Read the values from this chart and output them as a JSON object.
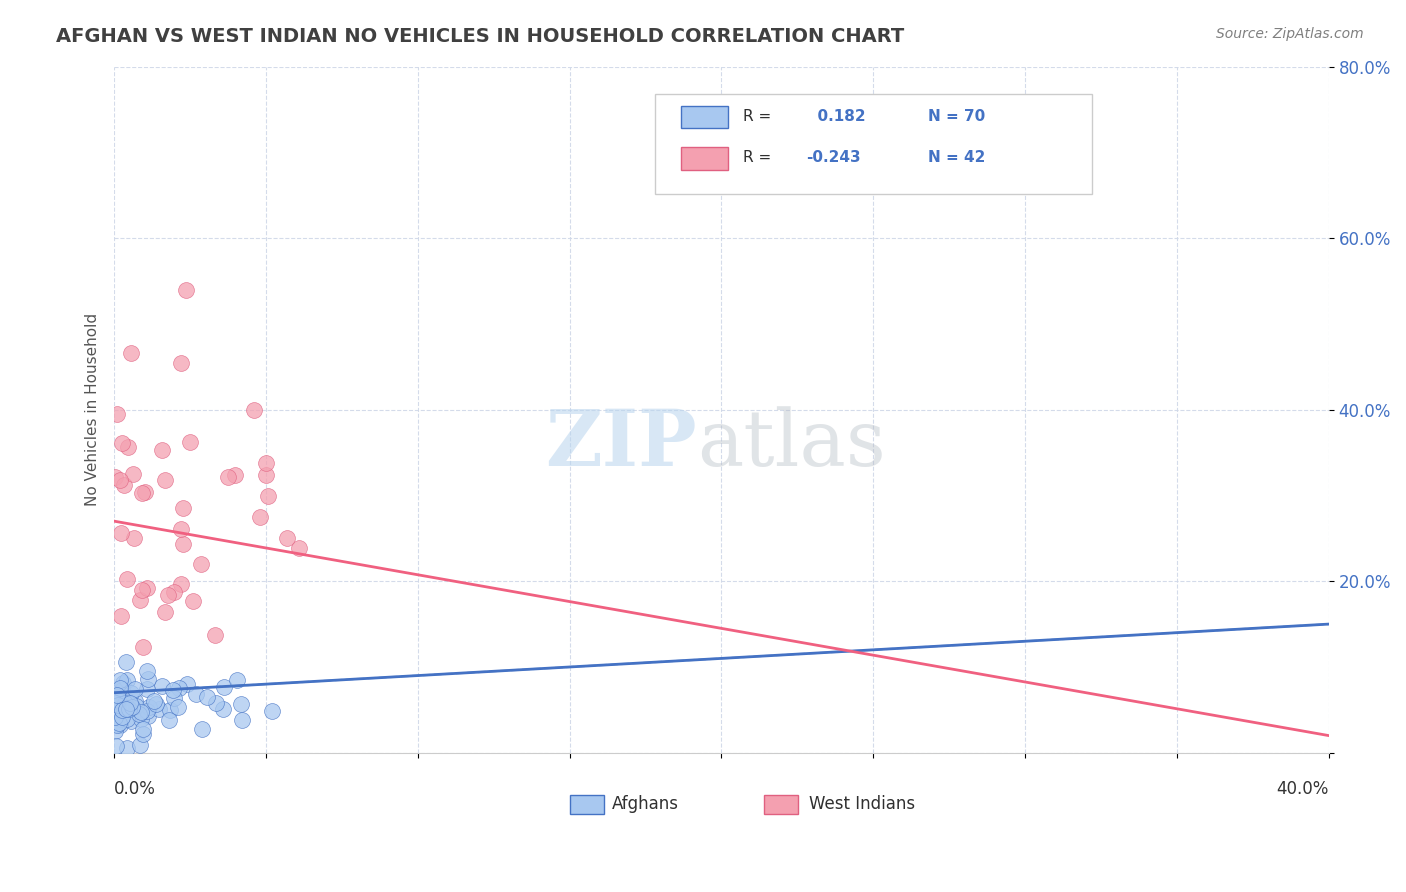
{
  "title": "AFGHAN VS WEST INDIAN NO VEHICLES IN HOUSEHOLD CORRELATION CHART",
  "source": "Source: ZipAtlas.com",
  "xlim": [
    0.0,
    0.4
  ],
  "ylim": [
    0.0,
    0.8
  ],
  "afghan_R": 0.182,
  "afghan_N": 70,
  "westindian_R": -0.243,
  "westindian_N": 42,
  "afghan_color": "#a8c8f0",
  "westindian_color": "#f4a0b0",
  "afghan_line_color": "#4472c4",
  "westindian_line_color": "#f06080",
  "background_color": "#ffffff",
  "grid_color": "#d0d8e8"
}
